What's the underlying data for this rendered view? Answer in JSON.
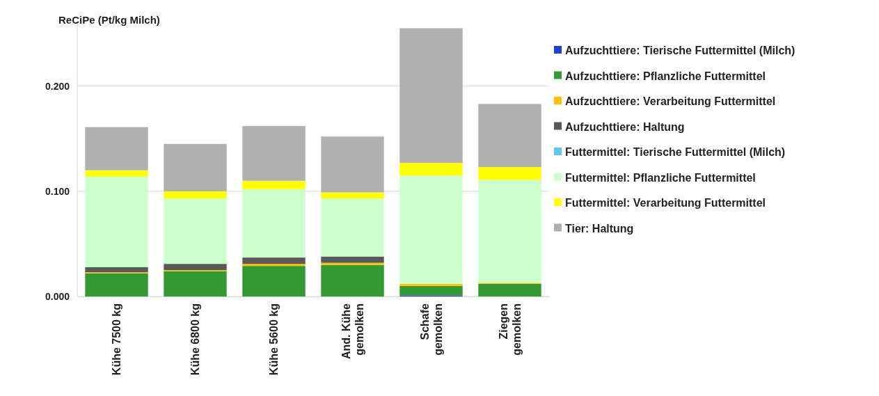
{
  "chart_data": {
    "type": "bar",
    "stacked": true,
    "title": "ReCiPe (Pt/kg Milch)",
    "categories": [
      "Kühe 7500 kg",
      "Kühe 6800 kg",
      "Kühe 5600 kg",
      "And. Kühe gemolken",
      "Schafe gemolken",
      "Ziegen gemolken"
    ],
    "series": [
      {
        "name": "Aufzuchttiere: Tierische Futtermittel (Milch)",
        "color": "#1f3fd8",
        "values": [
          0,
          0,
          0,
          0,
          0.001,
          0
        ]
      },
      {
        "name": "Aufzuchttiere: Pflanzliche Futtermittel",
        "color": "#339933",
        "values": [
          0.022,
          0.024,
          0.029,
          0.03,
          0.009,
          0.012
        ]
      },
      {
        "name": "Aufzuchttiere: Verarbeitung Futtermittel",
        "color": "#ffc000",
        "values": [
          0.001,
          0.001,
          0.002,
          0.002,
          0.002,
          0.001
        ]
      },
      {
        "name": "Aufzuchttiere: Haltung",
        "color": "#595959",
        "values": [
          0.005,
          0.006,
          0.006,
          0.006,
          0,
          0
        ]
      },
      {
        "name": "Futtermittel: Tierische Futtermittel (Milch)",
        "color": "#5bc8f5",
        "values": [
          0,
          0,
          0,
          0,
          0,
          0
        ]
      },
      {
        "name": "Futtermittel: Pflanzliche Futtermittel",
        "color": "#ccffcc",
        "values": [
          0.086,
          0.062,
          0.065,
          0.055,
          0.103,
          0.098
        ]
      },
      {
        "name": "Futtermittel: Verarbeitung Futtermittel",
        "color": "#ffff00",
        "values": [
          0.006,
          0.007,
          0.008,
          0.006,
          0.012,
          0.012
        ]
      },
      {
        "name": "Tier: Haltung",
        "color": "#b0b0b0",
        "values": [
          0.041,
          0.045,
          0.052,
          0.053,
          0.128,
          0.06
        ]
      }
    ],
    "yticks": [
      {
        "value": 0,
        "label": "0.000"
      },
      {
        "value": 0.1,
        "label": "0.100"
      },
      {
        "value": 0.2,
        "label": "0.200"
      }
    ],
    "ylim": [
      0,
      0.26
    ],
    "grid": "y",
    "legend": "right"
  }
}
